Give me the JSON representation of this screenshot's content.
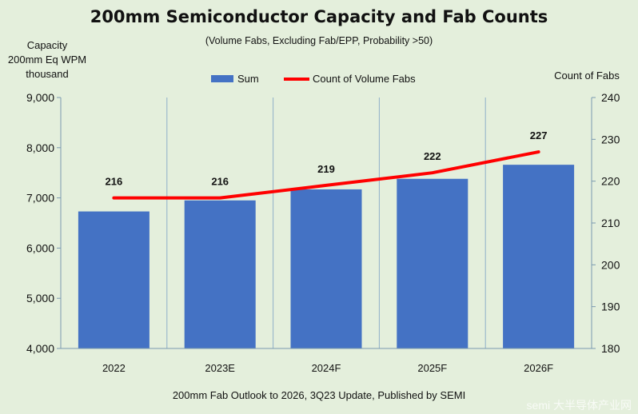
{
  "chart_data": {
    "type": "bar",
    "title": "200mm Semiconductor Capacity and Fab Counts",
    "subtitle": "(Volume Fabs, Excluding Fab/EPP, Probability >50)",
    "ylabel_left": [
      "Capacity",
      "200mm Eq WPM",
      "thousand"
    ],
    "ylabel_right": "Count of Fabs",
    "categories": [
      "2022",
      "2023E",
      "2024F",
      "2025F",
      "2026F"
    ],
    "series": [
      {
        "name": "Sum",
        "type": "bar",
        "axis": "left",
        "values": [
          6730,
          6950,
          7170,
          7380,
          7660
        ],
        "color": "#4472c4"
      },
      {
        "name": "Count of Volume Fabs",
        "type": "line",
        "axis": "right",
        "values": [
          216,
          216,
          219,
          222,
          227
        ],
        "color": "#ff0000"
      }
    ],
    "ylim_left": [
      4000,
      9000
    ],
    "yticks_left": [
      "4,000",
      "5,000",
      "6,000",
      "7,000",
      "8,000",
      "9,000"
    ],
    "ylim_right": [
      180,
      240
    ],
    "yticks_right": [
      "180",
      "190",
      "200",
      "210",
      "220",
      "230",
      "240"
    ],
    "legend_position": "top-center",
    "grid": "vertical",
    "footnote": "200mm Fab Outlook to 2026, 3Q23 Update, Published by SEMI",
    "watermark": "semi 大半导体产业网"
  }
}
